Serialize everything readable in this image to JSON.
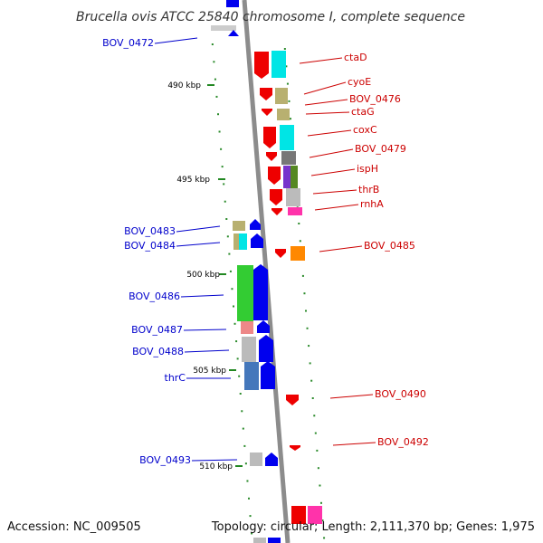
{
  "title": "Brucella ovis ATCC 25840 chromosome I, complete sequence",
  "footer": {
    "accession": "Accession: NC_009505",
    "topology": "Topology: circular; Length: 2,111,370 bp; Genes: 1,975"
  },
  "colors": {
    "reverse_label": "#0000cc",
    "forward_label": "#cc0000",
    "backbone": "#888888",
    "tick": "#228822"
  },
  "ticks": [
    {
      "label": "490 kbp"
    },
    {
      "label": "495 kbp"
    },
    {
      "label": "500 kbp"
    },
    {
      "label": "505 kbp"
    },
    {
      "label": "510 kbp"
    }
  ],
  "reverse_strand_labels": [
    "BOV_0472",
    "BOV_0483",
    "BOV_0484",
    "BOV_0486",
    "BOV_0487",
    "BOV_0488",
    "thrC",
    "BOV_0493"
  ],
  "forward_strand_labels": [
    "ctaD",
    "cyoE",
    "BOV_0476",
    "ctaG",
    "coxC",
    "BOV_0479",
    "ispH",
    "thrB",
    "rnhA",
    "BOV_0485",
    "BOV_0490",
    "BOV_0492"
  ]
}
